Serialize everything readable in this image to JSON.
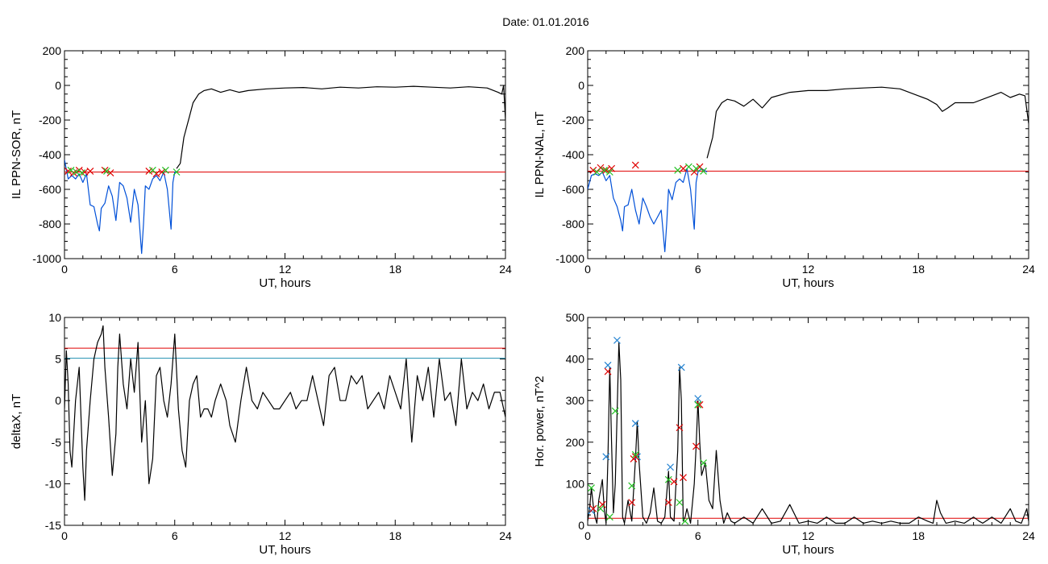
{
  "figure_title": "Date:  01.01.2016",
  "chart_data": [
    {
      "type": "line",
      "panel": "top-left",
      "title": "",
      "xlabel": "UT, hours",
      "ylabel": "IL PPN-SOR, nT",
      "xlim": [
        0,
        24
      ],
      "ylim": [
        -1000,
        200
      ],
      "xticks": [
        0,
        6,
        12,
        18,
        24
      ],
      "yticks": [
        -1000,
        -800,
        -600,
        -400,
        -200,
        0,
        200
      ],
      "hlines": [
        {
          "value": -500,
          "color": "#e00000"
        }
      ],
      "grid": false,
      "series": [
        {
          "name": "",
          "color": "#0050d8",
          "x": [
            0,
            0.2,
            0.4,
            0.6,
            0.8,
            1.0,
            1.2,
            1.4,
            1.6,
            1.8,
            1.9,
            2.0,
            2.2,
            2.4,
            2.6,
            2.8,
            3.0,
            3.2,
            3.4,
            3.6,
            3.8,
            4.0,
            4.2,
            4.3,
            4.4,
            4.6,
            4.8,
            5.0,
            5.2,
            5.4,
            5.6,
            5.8,
            5.9,
            6.0,
            6.1
          ],
          "values": [
            -430,
            -540,
            -520,
            -540,
            -510,
            -560,
            -510,
            -690,
            -700,
            -800,
            -840,
            -710,
            -680,
            -580,
            -640,
            -780,
            -560,
            -580,
            -650,
            -790,
            -600,
            -690,
            -970,
            -800,
            -580,
            -600,
            -540,
            -520,
            -550,
            -500,
            -600,
            -830,
            -560,
            -500,
            -500
          ]
        },
        {
          "name": "",
          "color": "#000000",
          "x": [
            6.1,
            6.3,
            6.5,
            6.8,
            7.0,
            7.3,
            7.6,
            8.0,
            8.5,
            9.0,
            9.5,
            10,
            11,
            12,
            13,
            14,
            15,
            16,
            17,
            18,
            19,
            20,
            21,
            22,
            23,
            23.6,
            23.8,
            23.9,
            24.0
          ],
          "values": [
            -480,
            -450,
            -300,
            -180,
            -100,
            -50,
            -30,
            -20,
            -40,
            -25,
            -40,
            -30,
            -20,
            -15,
            -12,
            -20,
            -10,
            -15,
            -8,
            -10,
            -5,
            -10,
            -15,
            -8,
            -15,
            -40,
            -50,
            0,
            -200
          ]
        }
      ],
      "markers": [
        {
          "color": "#e00000",
          "x": [
            0.2,
            0.5,
            0.8,
            1.1,
            1.4,
            2.2,
            2.5,
            4.6,
            5.0,
            5.3
          ],
          "values": [
            -495,
            -505,
            -490,
            -500,
            -495,
            -490,
            -505,
            -495,
            -510,
            -500
          ]
        },
        {
          "color": "#22c022",
          "x": [
            0.35,
            0.65,
            0.95,
            2.3,
            4.8,
            5.5,
            6.1
          ],
          "values": [
            -490,
            -500,
            -505,
            -495,
            -490,
            -490,
            -500
          ]
        }
      ]
    },
    {
      "type": "line",
      "panel": "top-right",
      "title": "",
      "xlabel": "UT, hours",
      "ylabel": "IL PPN-NAL, nT",
      "xlim": [
        0,
        24
      ],
      "ylim": [
        -1000,
        200
      ],
      "xticks": [
        0,
        6,
        12,
        18,
        24
      ],
      "yticks": [
        -1000,
        -800,
        -600,
        -400,
        -200,
        0,
        200
      ],
      "hlines": [
        {
          "value": -495,
          "color": "#e00000"
        }
      ],
      "grid": false,
      "series": [
        {
          "name": "",
          "color": "#0050d8",
          "x": [
            0,
            0.2,
            0.4,
            0.6,
            0.8,
            1.0,
            1.2,
            1.4,
            1.6,
            1.8,
            1.9,
            2.0,
            2.2,
            2.4,
            2.6,
            2.8,
            3.0,
            3.2,
            3.4,
            3.6,
            3.8,
            4.0,
            4.2,
            4.3,
            4.4,
            4.6,
            4.8,
            5.0,
            5.2,
            5.4,
            5.6,
            5.8,
            5.9,
            6.0,
            6.2,
            6.5
          ],
          "values": [
            -600,
            -520,
            -510,
            -520,
            -500,
            -550,
            -520,
            -650,
            -700,
            -780,
            -840,
            -700,
            -690,
            -600,
            -720,
            -800,
            -650,
            -700,
            -760,
            -800,
            -760,
            -720,
            -960,
            -800,
            -600,
            -660,
            -560,
            -540,
            -560,
            -480,
            -600,
            -830,
            -560,
            -500,
            -480,
            -500
          ]
        },
        {
          "name": "",
          "color": "#000000",
          "x": [
            6.5,
            6.8,
            7.0,
            7.3,
            7.6,
            8.0,
            8.5,
            9.0,
            9.5,
            10,
            11,
            12,
            13,
            14,
            15,
            16,
            17,
            18,
            18.5,
            19,
            19.3,
            19.6,
            20,
            21,
            22,
            22.5,
            23,
            23.5,
            23.8,
            24.0
          ],
          "values": [
            -420,
            -300,
            -150,
            -100,
            -80,
            -90,
            -120,
            -80,
            -130,
            -70,
            -40,
            -30,
            -30,
            -20,
            -15,
            -10,
            -20,
            -60,
            -80,
            -110,
            -150,
            -130,
            -100,
            -100,
            -60,
            -40,
            -70,
            -50,
            -60,
            -220
          ]
        }
      ],
      "markers": [
        {
          "color": "#e00000",
          "x": [
            0.3,
            0.7,
            1.0,
            1.3,
            2.6,
            5.2,
            5.8,
            6.1
          ],
          "values": [
            -490,
            -475,
            -490,
            -480,
            -460,
            -480,
            -500,
            -470
          ]
        },
        {
          "color": "#22c022",
          "x": [
            0.5,
            0.9,
            1.2,
            4.9,
            5.5,
            5.9,
            6.3
          ],
          "values": [
            -500,
            -490,
            -500,
            -490,
            -470,
            -480,
            -495
          ]
        }
      ]
    },
    {
      "type": "line",
      "panel": "bottom-left",
      "title": "",
      "xlabel": "UT, hours",
      "ylabel": "deltaX, nT",
      "xlim": [
        0,
        24
      ],
      "ylim": [
        -15,
        10
      ],
      "xticks": [
        0,
        6,
        12,
        18,
        24
      ],
      "yticks": [
        -15,
        -10,
        -5,
        0,
        5,
        10
      ],
      "hlines": [
        {
          "value": 6.3,
          "color": "#e00000"
        },
        {
          "value": 5.1,
          "color": "#1f8fb0"
        }
      ],
      "grid": false,
      "series": [
        {
          "name": "",
          "color": "#000000",
          "x": [
            0,
            0.1,
            0.2,
            0.3,
            0.4,
            0.5,
            0.6,
            0.8,
            1.0,
            1.1,
            1.2,
            1.4,
            1.6,
            1.8,
            2.0,
            2.1,
            2.2,
            2.4,
            2.6,
            2.8,
            2.9,
            3.0,
            3.2,
            3.4,
            3.6,
            3.8,
            4.0,
            4.2,
            4.4,
            4.6,
            4.8,
            5.0,
            5.2,
            5.4,
            5.6,
            5.8,
            6.0,
            6.2,
            6.4,
            6.6,
            6.8,
            7.0,
            7.2,
            7.4,
            7.6,
            7.8,
            8.0,
            8.2,
            8.5,
            8.8,
            9.0,
            9.3,
            9.6,
            9.9,
            10.2,
            10.5,
            10.8,
            11.1,
            11.4,
            11.7,
            12.0,
            12.3,
            12.6,
            12.9,
            13.2,
            13.5,
            13.8,
            14.1,
            14.4,
            14.7,
            15.0,
            15.3,
            15.6,
            15.9,
            16.2,
            16.5,
            16.8,
            17.1,
            17.4,
            17.7,
            18.0,
            18.3,
            18.6,
            18.9,
            19.2,
            19.5,
            19.8,
            20.1,
            20.4,
            20.7,
            21.0,
            21.3,
            21.6,
            21.9,
            22.2,
            22.5,
            22.8,
            23.1,
            23.4,
            23.7,
            24.0
          ],
          "values": [
            -1,
            6,
            2,
            -6,
            -8,
            -4,
            0,
            4,
            -8,
            -12,
            -6,
            0,
            5,
            7,
            8,
            9,
            4,
            -2,
            -9,
            -4,
            4,
            8,
            2,
            -1,
            5,
            1,
            7,
            -5,
            0,
            -10,
            -7,
            3,
            4,
            0,
            -2,
            2,
            8,
            -1,
            -6,
            -8,
            0,
            2,
            3,
            -2,
            -1,
            -1,
            -2,
            0,
            2,
            0,
            -3,
            -5,
            0,
            4,
            0,
            -1,
            1,
            0,
            -1,
            -1,
            0,
            1,
            -1,
            0,
            0,
            3,
            0,
            -3,
            3,
            4,
            0,
            0,
            3,
            2,
            3,
            -1,
            0,
            1,
            -1,
            3,
            1,
            -1,
            5,
            -5,
            3,
            0,
            4,
            -2,
            5,
            0,
            1,
            -3,
            5,
            -1,
            1,
            0,
            2,
            -1,
            1,
            1,
            -2
          ]
        }
      ],
      "markers": []
    },
    {
      "type": "line",
      "panel": "bottom-right",
      "title": "",
      "xlabel": "UT, hours",
      "ylabel": "Hor. power, nT^2",
      "xlim": [
        0,
        24
      ],
      "ylim": [
        0,
        500
      ],
      "xticks": [
        0,
        6,
        12,
        18,
        24
      ],
      "yticks": [
        0,
        100,
        200,
        300,
        400,
        500
      ],
      "hlines": [
        {
          "value": 17,
          "color": "#e00000"
        }
      ],
      "grid": false,
      "series": [
        {
          "name": "",
          "color": "#000000",
          "x": [
            0,
            0.1,
            0.2,
            0.3,
            0.4,
            0.5,
            0.6,
            0.8,
            0.9,
            1.0,
            1.1,
            1.2,
            1.3,
            1.4,
            1.5,
            1.6,
            1.7,
            1.8,
            1.9,
            2.0,
            2.2,
            2.4,
            2.6,
            2.7,
            2.8,
            3.0,
            3.2,
            3.4,
            3.6,
            3.8,
            4.0,
            4.2,
            4.4,
            4.5,
            4.7,
            4.9,
            5.0,
            5.1,
            5.2,
            5.3,
            5.4,
            5.6,
            5.8,
            5.9,
            6.0,
            6.1,
            6.2,
            6.4,
            6.6,
            6.8,
            7.0,
            7.2,
            7.4,
            7.6,
            7.8,
            8.0,
            8.5,
            9.0,
            9.5,
            10.0,
            10.5,
            11.0,
            11.5,
            12.0,
            12.5,
            13.0,
            13.5,
            14.0,
            14.5,
            15.0,
            15.5,
            16.0,
            16.5,
            17.0,
            17.5,
            18.0,
            18.5,
            18.8,
            19.0,
            19.2,
            19.5,
            20.0,
            20.5,
            21.0,
            21.3,
            21.5,
            22.0,
            22.5,
            23.0,
            23.3,
            23.6,
            23.9,
            24.0
          ],
          "values": [
            10,
            40,
            90,
            50,
            20,
            5,
            60,
            110,
            40,
            5,
            160,
            380,
            200,
            30,
            100,
            270,
            440,
            350,
            20,
            5,
            60,
            10,
            160,
            250,
            150,
            20,
            5,
            30,
            90,
            10,
            5,
            20,
            130,
            20,
            10,
            180,
            380,
            300,
            10,
            20,
            40,
            5,
            100,
            190,
            300,
            200,
            120,
            150,
            60,
            40,
            180,
            60,
            5,
            30,
            10,
            5,
            20,
            5,
            40,
            5,
            10,
            50,
            5,
            10,
            5,
            20,
            5,
            5,
            20,
            5,
            10,
            5,
            10,
            5,
            5,
            20,
            10,
            5,
            60,
            30,
            5,
            10,
            5,
            20,
            10,
            5,
            20,
            5,
            40,
            10,
            5,
            40,
            10
          ]
        }
      ],
      "markers": [
        {
          "color": "#2080d0",
          "x": [
            0.2,
            1.0,
            1.1,
            1.6,
            2.6,
            2.7,
            4.5,
            5.1,
            6.0,
            6.0
          ],
          "values": [
            35,
            165,
            385,
            445,
            245,
            165,
            140,
            380,
            305,
            290
          ]
        },
        {
          "color": "#e00000",
          "x": [
            0.3,
            0.8,
            1.1,
            2.4,
            2.5,
            2.6,
            4.4,
            4.7,
            5.0,
            5.2,
            5.9,
            6.1
          ],
          "values": [
            40,
            50,
            370,
            55,
            160,
            165,
            55,
            105,
            235,
            115,
            190,
            290
          ]
        },
        {
          "color": "#22c022",
          "x": [
            0.2,
            0.7,
            1.2,
            1.5,
            2.4,
            2.6,
            4.4,
            5.0,
            5.3,
            6.0,
            6.3
          ],
          "values": [
            90,
            40,
            20,
            275,
            95,
            170,
            110,
            55,
            10,
            290,
            150
          ]
        }
      ]
    }
  ]
}
